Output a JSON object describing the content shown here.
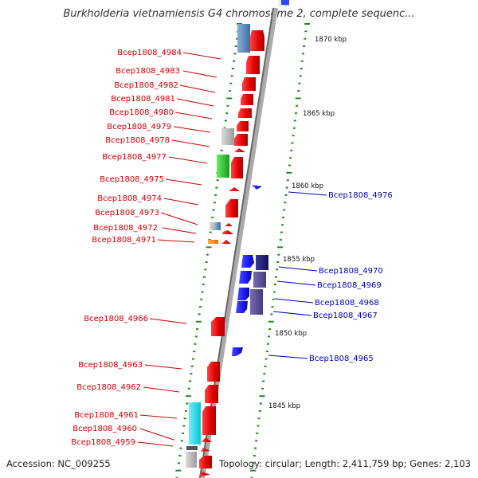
{
  "title": "Burkholderia vietnamiensis G4 chromosome 2, complete sequenc...",
  "footer": {
    "accession": "Accession: NC_009255",
    "topology": "Topology: circular; Length: 2,411,759 bp; Genes: 2,103"
  },
  "colors": {
    "reverse_label": "#cc0000",
    "forward_label": "#0000bb",
    "gene_red": "#ee0000",
    "gene_blue": "#1a1aee",
    "backbone": "#888888",
    "tick": "#228822"
  },
  "ruler": [
    "1870 kbp",
    "1865 kbp",
    "1860 kbp",
    "1855 kbp",
    "1850 kbp",
    "1845 kbp"
  ],
  "reverse_labels": [
    "Bcep1808_4984",
    "Bcep1808_4983",
    "Bcep1808_4982",
    "Bcep1808_4981",
    "Bcep1808_4980",
    "Bcep1808_4979",
    "Bcep1808_4978",
    "Bcep1808_4977",
    "Bcep1808_4975",
    "Bcep1808_4974",
    "Bcep1808_4973",
    "Bcep1808_4972",
    "Bcep1808_4971",
    "Bcep1808_4966",
    "Bcep1808_4963",
    "Bcep1808_4962",
    "Bcep1808_4961",
    "Bcep1808_4960",
    "Bcep1808_4959"
  ],
  "forward_labels": [
    "Bcep1808_4976",
    "Bcep1808_4970",
    "Bcep1808_4969",
    "Bcep1808_4968",
    "Bcep1808_4967",
    "Bcep1808_4965"
  ]
}
